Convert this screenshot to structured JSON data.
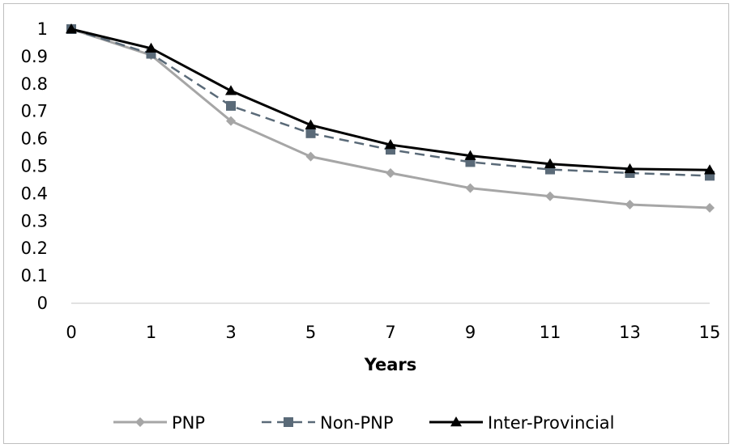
{
  "chart_data": {
    "type": "line",
    "title": "",
    "xlabel": "Years",
    "ylabel": "",
    "categories": [
      "0",
      "1",
      "3",
      "5",
      "7",
      "9",
      "11",
      "13",
      "15"
    ],
    "y_ticks": [
      "0",
      "0.1",
      "0.2",
      "0.3",
      "0.4",
      "0.5",
      "0.6",
      "0.7",
      "0.8",
      "0.9",
      "1"
    ],
    "ylim": [
      0,
      1
    ],
    "grid": false,
    "legend_position": "bottom",
    "series": [
      {
        "name": "PNP",
        "color": "#a6a6a6",
        "marker": "diamond",
        "line_style": "solid",
        "values": [
          1,
          0.905,
          0.665,
          0.535,
          0.475,
          0.42,
          0.39,
          0.36,
          0.348
        ]
      },
      {
        "name": "Non-PNP",
        "color": "#5a6a78",
        "marker": "square",
        "line_style": "dashed",
        "values": [
          1,
          0.91,
          0.72,
          0.62,
          0.56,
          0.515,
          0.488,
          0.475,
          0.465
        ]
      },
      {
        "name": "Inter-Provincial",
        "color": "#000000",
        "marker": "triangle",
        "line_style": "solid",
        "values": [
          1,
          0.93,
          0.775,
          0.65,
          0.578,
          0.538,
          0.508,
          0.49,
          0.486
        ]
      }
    ]
  }
}
